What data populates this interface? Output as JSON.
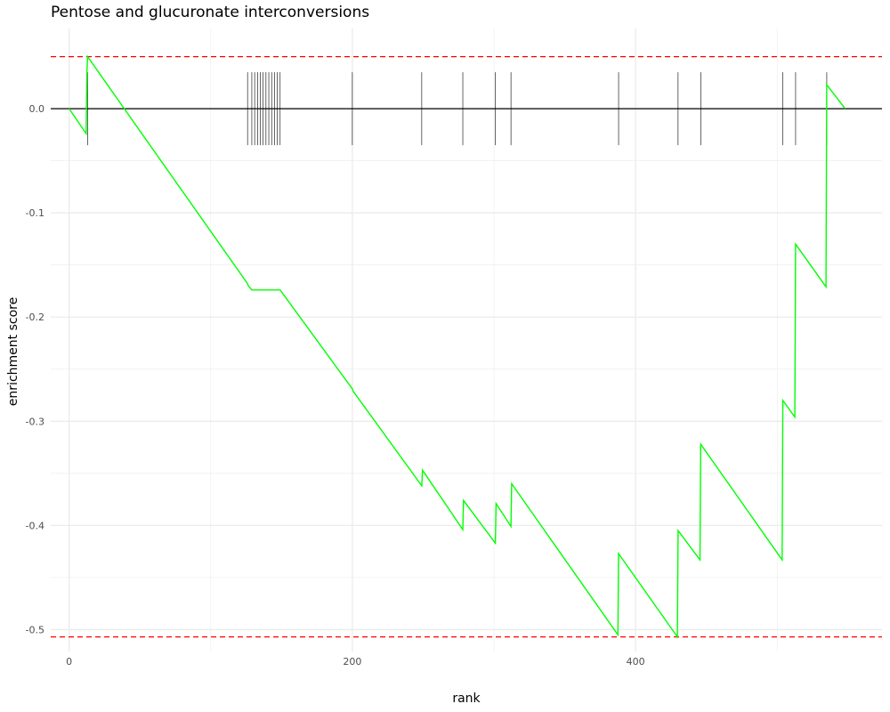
{
  "chart_data": {
    "type": "line",
    "title": "Pentose and glucuronate interconversions",
    "xlabel": "rank",
    "ylabel": "enrichment score",
    "xlim": [
      -13,
      574
    ],
    "ylim": [
      -0.521,
      0.077
    ],
    "x_ticks": [
      0,
      200,
      400
    ],
    "x_tick_labels": [
      "0",
      "200",
      "400"
    ],
    "y_ticks": [
      0.0,
      -0.1,
      -0.2,
      -0.3,
      -0.4,
      -0.5
    ],
    "y_tick_labels": [
      "0.0",
      "-0.1",
      "-0.2",
      "-0.3",
      "-0.4",
      "-0.5"
    ],
    "grid": true,
    "colors": {
      "curve": "#00ff00",
      "threshold": "#ff0000",
      "hits": "#000000",
      "grid": "#ebebeb"
    },
    "thresholds": [
      0.05,
      -0.507
    ],
    "hits": [
      13,
      126,
      129,
      131,
      133,
      135,
      137,
      139,
      141,
      143,
      145,
      147,
      149,
      200,
      249,
      278,
      301,
      312,
      388,
      430,
      446,
      504,
      513,
      535
    ],
    "series": [
      {
        "x": [
          0,
          12,
          12.5,
          13,
          126,
          126.5,
          129,
          149,
          200,
          200.5,
          249,
          249.5,
          278,
          278.5,
          301,
          301.5,
          312,
          312.5,
          387.5,
          388,
          429.5,
          430,
          445.5,
          446,
          503.5,
          504,
          512.5,
          513,
          534.5,
          535,
          548
        ],
        "y": [
          0,
          -0.024,
          0.034,
          0.05,
          -0.168,
          -0.17,
          -0.174,
          -0.174,
          -0.269,
          -0.271,
          -0.362,
          -0.347,
          -0.404,
          -0.376,
          -0.417,
          -0.379,
          -0.401,
          -0.36,
          -0.505,
          -0.427,
          -0.507,
          -0.405,
          -0.433,
          -0.322,
          -0.433,
          -0.28,
          -0.296,
          -0.13,
          -0.171,
          0.023,
          0.0
        ]
      }
    ]
  }
}
